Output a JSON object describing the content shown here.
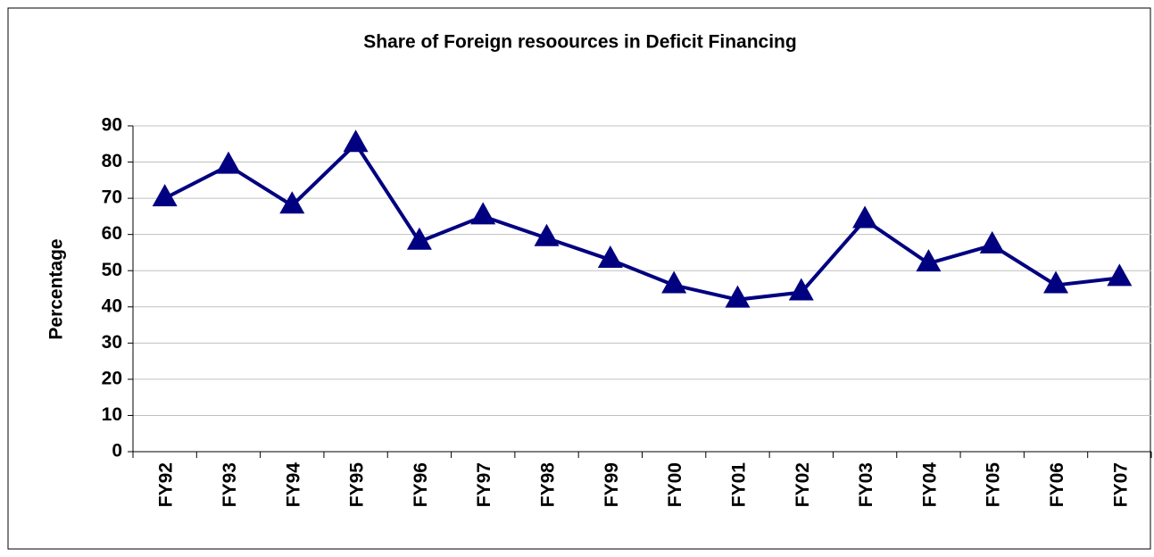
{
  "chart_data": {
    "type": "line",
    "title": "Share of Foreign resoources in Deficit Financing",
    "y_label": "Percentage",
    "categories": [
      "FY92",
      "FY93",
      "FY94",
      "FY95",
      "FY96",
      "FY97",
      "FY98",
      "FY99",
      "FY00",
      "FY01",
      "FY02",
      "FY03",
      "FY04",
      "FY05",
      "FY06",
      "FY07"
    ],
    "series": [
      {
        "name": "Share",
        "color": "#000080",
        "values": [
          70,
          79,
          68,
          85,
          58,
          65,
          59,
          53,
          46,
          42,
          44,
          64,
          52,
          57,
          46,
          48
        ]
      }
    ],
    "ylim": [
      0,
      90
    ],
    "yticks": [
      0,
      10,
      20,
      30,
      40,
      50,
      60,
      70,
      80,
      90
    ],
    "grid": true
  }
}
